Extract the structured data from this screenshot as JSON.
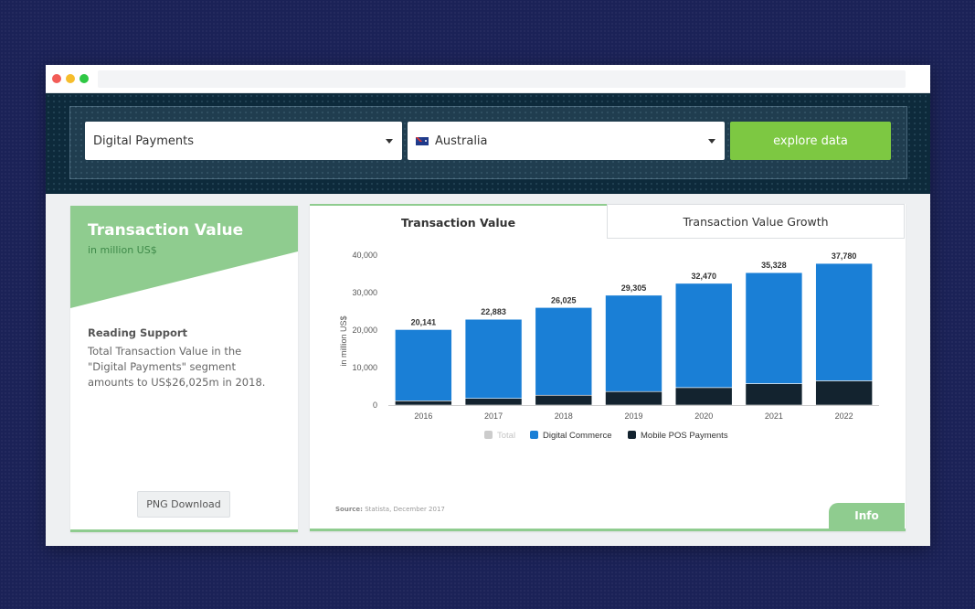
{
  "filters": {
    "segment": "Digital Payments",
    "country": "Australia",
    "explore_label": "explore data"
  },
  "left_card": {
    "title": "Transaction Value",
    "unit": "in million US$",
    "reading_title": "Reading Support",
    "reading_text": "Total Transaction Value in the \"Digital Payments\" segment amounts to US$26,025m in 2018.",
    "download_label": "PNG Download"
  },
  "tabs": {
    "active": "Transaction Value",
    "inactive": "Transaction Value Growth"
  },
  "source": {
    "label": "Source:",
    "text": "Statista, December 2017"
  },
  "info_label": "Info",
  "colors": {
    "digital_commerce": "#1a7fd6",
    "mobile_pos": "#13232f",
    "total": "#cccccc",
    "accent_green": "#7dc842",
    "card_green": "#8fcc8f"
  },
  "chart_data": {
    "type": "bar",
    "stacked": true,
    "categories": [
      "2016",
      "2017",
      "2018",
      "2019",
      "2020",
      "2021",
      "2022"
    ],
    "series": [
      {
        "name": "Total",
        "values": [
          20141,
          22883,
          26025,
          29305,
          32470,
          35328,
          37780
        ],
        "color": "#cccccc",
        "legend_faded": true
      },
      {
        "name": "Digital Commerce",
        "values": [
          19000,
          21100,
          23400,
          25700,
          27800,
          29600,
          31300
        ],
        "color": "#1a7fd6"
      },
      {
        "name": "Mobile POS Payments",
        "values": [
          1141,
          1783,
          2625,
          3605,
          4670,
          5728,
          6480
        ],
        "color": "#13232f"
      }
    ],
    "total_labels": [
      "20,141",
      "22,883",
      "26,025",
      "29,305",
      "32,470",
      "35,328",
      "37,780"
    ],
    "yticks": [
      0,
      10000,
      20000,
      30000,
      40000
    ],
    "ytick_labels": [
      "0",
      "10,000",
      "20,000",
      "30,000",
      "40,000"
    ],
    "ylim": [
      0,
      40000
    ],
    "xlabel": "",
    "ylabel": "in million US$",
    "legend_position": "bottom",
    "grid": false
  }
}
